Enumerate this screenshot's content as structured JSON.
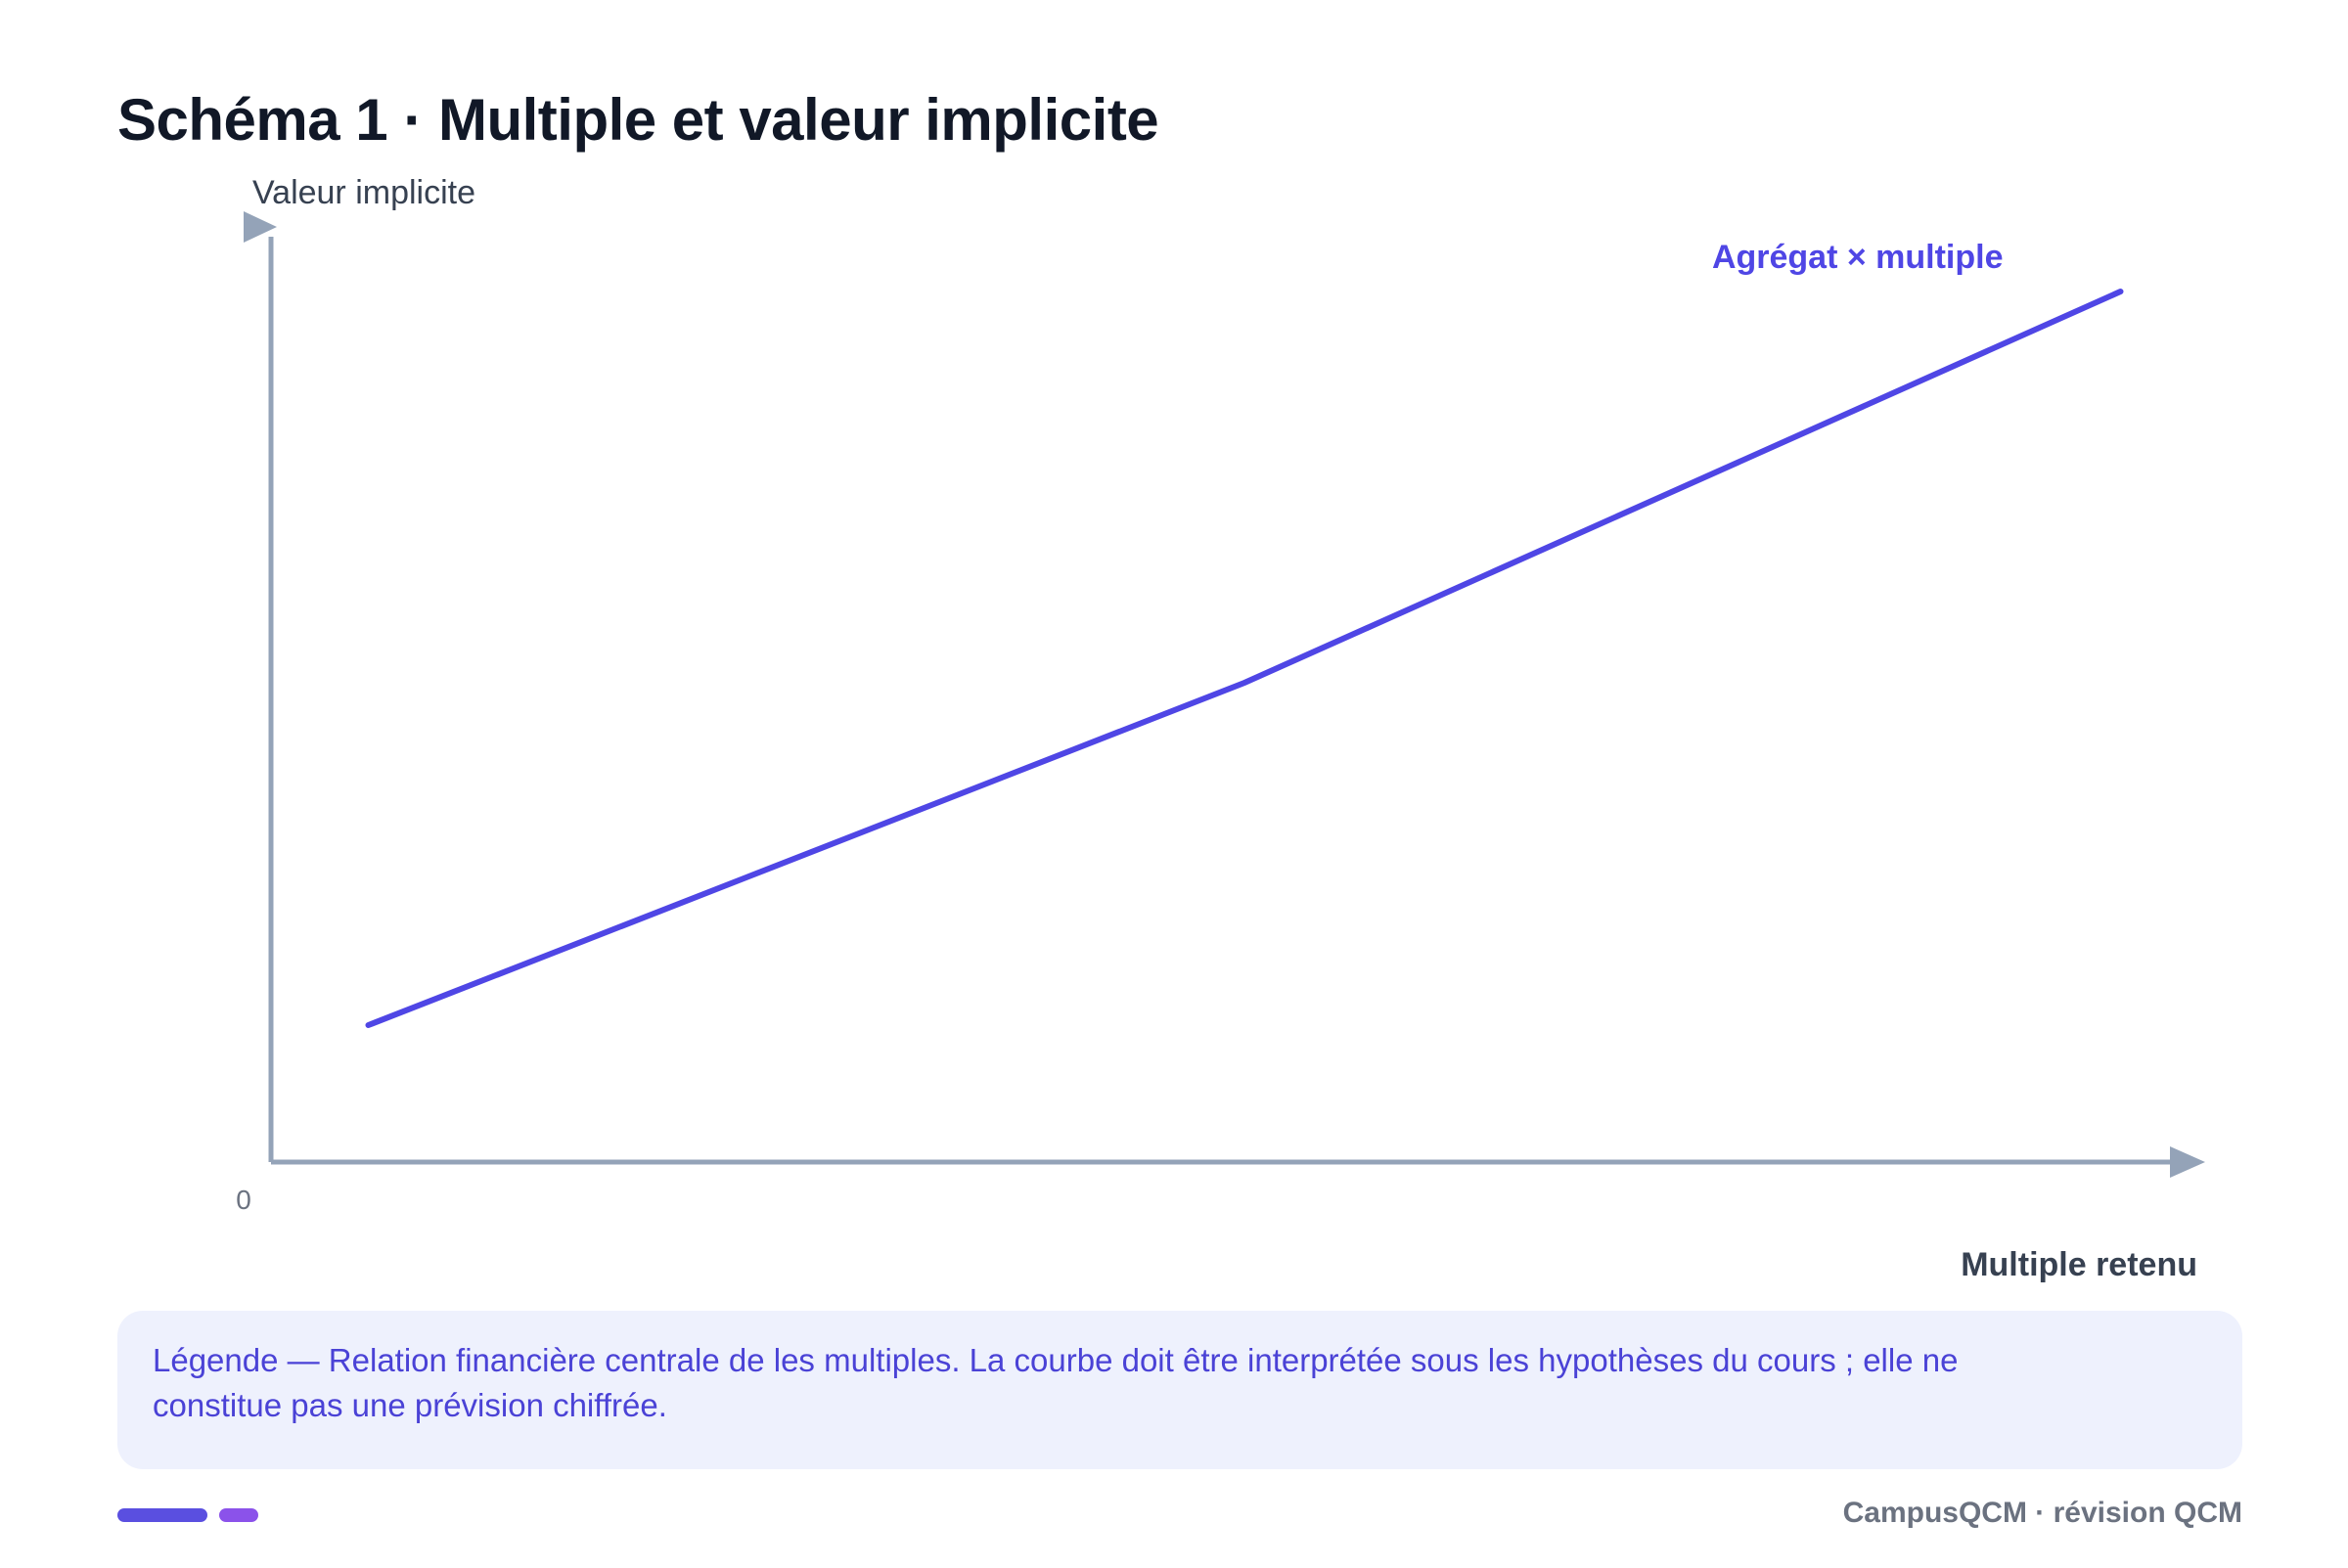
{
  "title": "Schéma 1 · Multiple et valeur implicite",
  "chart_data": {
    "type": "line",
    "title": "Schéma 1 · Multiple et valeur implicite",
    "ylabel": "Valeur implicite",
    "xlabel": "Multiple retenu",
    "origin_label": "0",
    "series": [
      {
        "name": "Agrégat × multiple",
        "color": "#4f46e5",
        "x": [
          0.05,
          0.5,
          0.95
        ],
        "y": [
          0.14,
          0.49,
          0.89
        ]
      }
    ],
    "xlim": [
      0,
      1
    ],
    "ylim": [
      0,
      1
    ],
    "grid": false,
    "axis_color": "#94a3b8"
  },
  "legend": {
    "text": "Légende — Relation financière centrale de les multiples. La courbe doit être interprétée sous les hypothèses du cours ; elle ne constitue pas une prévision chiffrée."
  },
  "footer": {
    "brand": "CampusQCM · révision QCM",
    "colors": [
      "#5a4fe0",
      "#8b52ea"
    ]
  }
}
